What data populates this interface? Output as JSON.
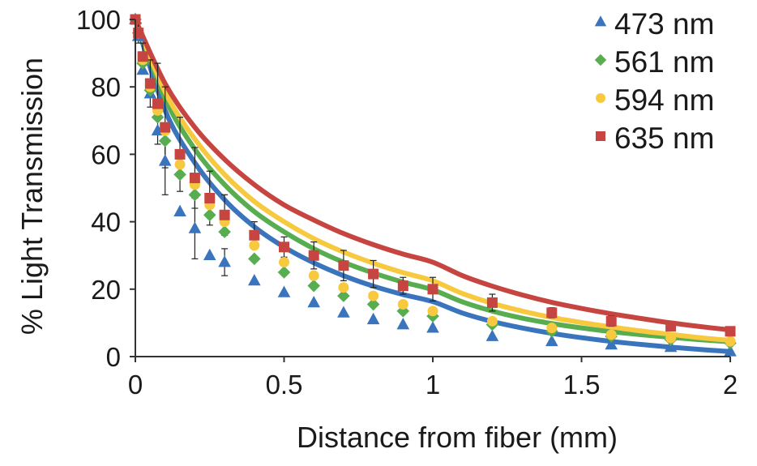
{
  "chart_data": {
    "type": "scatter",
    "xlabel": "Distance from fiber (mm)",
    "ylabel": "% Light Transmission",
    "xlim": [
      0,
      2
    ],
    "ylim": [
      0,
      100
    ],
    "x_ticks": [
      {
        "value": 0,
        "label": "0"
      },
      {
        "value": 0.5,
        "label": "0.5"
      },
      {
        "value": 1,
        "label": "1"
      },
      {
        "value": 1.5,
        "label": "1.5"
      },
      {
        "value": 2,
        "label": "2"
      }
    ],
    "y_ticks": [
      {
        "value": 0,
        "label": "0"
      },
      {
        "value": 20,
        "label": "20"
      },
      {
        "value": 40,
        "label": "40"
      },
      {
        "value": 60,
        "label": "60"
      },
      {
        "value": 80,
        "label": "80"
      },
      {
        "value": 100,
        "label": "100"
      }
    ],
    "grid": false,
    "legend_position": "top-right",
    "series": [
      {
        "name": "473 nm",
        "color": "#3a74bd",
        "marker": "triangle",
        "points": [
          {
            "x": 0,
            "y": 100
          },
          {
            "x": 0.01,
            "y": 95
          },
          {
            "x": 0.025,
            "y": 85
          },
          {
            "x": 0.05,
            "y": 78
          },
          {
            "x": 0.075,
            "y": 67
          },
          {
            "x": 0.1,
            "y": 58,
            "err": 10
          },
          {
            "x": 0.15,
            "y": 43
          },
          {
            "x": 0.2,
            "y": 38,
            "err": 9
          },
          {
            "x": 0.25,
            "y": 30
          },
          {
            "x": 0.3,
            "y": 28,
            "err": 4
          },
          {
            "x": 0.4,
            "y": 22.5
          },
          {
            "x": 0.5,
            "y": 19
          },
          {
            "x": 0.6,
            "y": 16
          },
          {
            "x": 0.7,
            "y": 13
          },
          {
            "x": 0.8,
            "y": 11
          },
          {
            "x": 0.9,
            "y": 9.5
          },
          {
            "x": 1,
            "y": 8.5
          },
          {
            "x": 1.2,
            "y": 6
          },
          {
            "x": 1.4,
            "y": 4.5
          },
          {
            "x": 1.6,
            "y": 3.5
          },
          {
            "x": 1.8,
            "y": 2.8
          },
          {
            "x": 2,
            "y": 1.5
          }
        ],
        "curve": [
          100,
          73,
          57.5,
          46.5,
          38.5,
          32.5,
          27.8,
          24,
          20.9,
          18.4,
          16.3,
          12.9,
          10.4,
          8.5,
          6.9,
          5.6,
          4.5,
          3.6,
          2.8,
          2.1,
          1.5
        ]
      },
      {
        "name": "561 nm",
        "color": "#57ad4f",
        "marker": "diamond",
        "points": [
          {
            "x": 0,
            "y": 100
          },
          {
            "x": 0.01,
            "y": 96
          },
          {
            "x": 0.025,
            "y": 87
          },
          {
            "x": 0.05,
            "y": 79
          },
          {
            "x": 0.075,
            "y": 71
          },
          {
            "x": 0.1,
            "y": 64
          },
          {
            "x": 0.15,
            "y": 54
          },
          {
            "x": 0.2,
            "y": 48
          },
          {
            "x": 0.25,
            "y": 42
          },
          {
            "x": 0.3,
            "y": 37
          },
          {
            "x": 0.4,
            "y": 29
          },
          {
            "x": 0.5,
            "y": 25
          },
          {
            "x": 0.6,
            "y": 21
          },
          {
            "x": 0.7,
            "y": 18
          },
          {
            "x": 0.8,
            "y": 15.5
          },
          {
            "x": 0.9,
            "y": 13.5
          },
          {
            "x": 1,
            "y": 12
          },
          {
            "x": 1.2,
            "y": 9.5
          },
          {
            "x": 1.4,
            "y": 7.5
          },
          {
            "x": 1.6,
            "y": 6
          },
          {
            "x": 1.8,
            "y": 5
          },
          {
            "x": 2,
            "y": 4
          }
        ],
        "curve": [
          100,
          76.5,
          61.5,
          51,
          43,
          37,
          32,
          28,
          24.8,
          22.1,
          19.8,
          16.2,
          13.5,
          11.4,
          9.8,
          8.5,
          7.4,
          6.5,
          5.7,
          5,
          4.4
        ]
      },
      {
        "name": "594 nm",
        "color": "#f7c93e",
        "marker": "circle",
        "points": [
          {
            "x": 0,
            "y": 100
          },
          {
            "x": 0.01,
            "y": 96
          },
          {
            "x": 0.025,
            "y": 88
          },
          {
            "x": 0.05,
            "y": 80
          },
          {
            "x": 0.075,
            "y": 73
          },
          {
            "x": 0.1,
            "y": 67
          },
          {
            "x": 0.15,
            "y": 57
          },
          {
            "x": 0.2,
            "y": 51
          },
          {
            "x": 0.25,
            "y": 45
          },
          {
            "x": 0.3,
            "y": 40
          },
          {
            "x": 0.4,
            "y": 33
          },
          {
            "x": 0.5,
            "y": 28
          },
          {
            "x": 0.6,
            "y": 24
          },
          {
            "x": 0.7,
            "y": 20.5
          },
          {
            "x": 0.8,
            "y": 18
          },
          {
            "x": 0.9,
            "y": 15.5
          },
          {
            "x": 1,
            "y": 13.5
          },
          {
            "x": 1.2,
            "y": 10.5
          },
          {
            "x": 1.4,
            "y": 8.5
          },
          {
            "x": 1.6,
            "y": 6.5
          },
          {
            "x": 1.8,
            "y": 5.5
          },
          {
            "x": 2,
            "y": 4.5
          }
        ],
        "curve": [
          100,
          78.5,
          64.5,
          54,
          46,
          40,
          35,
          31,
          27.7,
          24.9,
          22.5,
          18.7,
          15.8,
          13.5,
          11.6,
          10.1,
          8.8,
          7.6,
          6.6,
          5.6,
          4.8
        ]
      },
      {
        "name": "635 nm",
        "color": "#c64541",
        "marker": "square",
        "points": [
          {
            "x": 0,
            "y": 100
          },
          {
            "x": 0.01,
            "y": 96,
            "err": 3
          },
          {
            "x": 0.025,
            "y": 89,
            "err": 4
          },
          {
            "x": 0.05,
            "y": 81,
            "err": 7
          },
          {
            "x": 0.075,
            "y": 75,
            "err": 12
          },
          {
            "x": 0.1,
            "y": 68,
            "err": 12
          },
          {
            "x": 0.15,
            "y": 60,
            "err": 11
          },
          {
            "x": 0.2,
            "y": 53,
            "err": 9
          },
          {
            "x": 0.25,
            "y": 47,
            "err": 8
          },
          {
            "x": 0.3,
            "y": 42,
            "err": 6
          },
          {
            "x": 0.4,
            "y": 36,
            "err": 4
          },
          {
            "x": 0.5,
            "y": 32.5,
            "err": 3
          },
          {
            "x": 0.6,
            "y": 30,
            "err": 4
          },
          {
            "x": 0.7,
            "y": 27,
            "err": 4.5
          },
          {
            "x": 0.8,
            "y": 24.5,
            "err": 4
          },
          {
            "x": 0.9,
            "y": 21,
            "err": 2.5
          },
          {
            "x": 1,
            "y": 20,
            "err": 3.5
          },
          {
            "x": 1.2,
            "y": 16,
            "err": 2.5
          },
          {
            "x": 1.4,
            "y": 13,
            "err": 1.5
          },
          {
            "x": 1.6,
            "y": 10.5,
            "err": 1.5
          },
          {
            "x": 1.8,
            "y": 9,
            "err": 1
          },
          {
            "x": 2,
            "y": 7.5,
            "err": 1
          }
        ],
        "curve": [
          100,
          81,
          68,
          58.5,
          51,
          45,
          40.5,
          36.5,
          33.2,
          30.4,
          28,
          24,
          20.9,
          18.3,
          16.1,
          14.3,
          12.7,
          11.3,
          10,
          8.9,
          7.9
        ]
      }
    ]
  }
}
